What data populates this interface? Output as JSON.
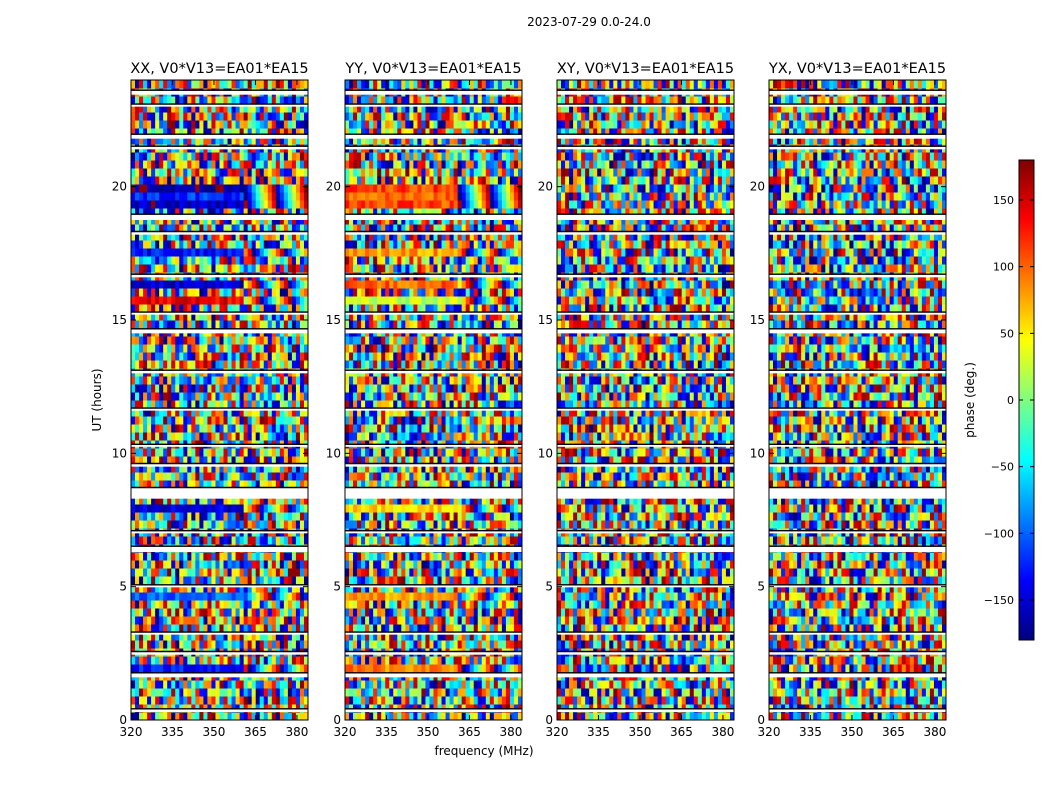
{
  "chart_data": {
    "type": "heatmap",
    "suptitle": "2023-07-29 0.0-24.0",
    "xlabel": "frequency (MHz)",
    "ylabel": "UT (hours)",
    "xlim": [
      320,
      384
    ],
    "ylim": [
      0,
      24
    ],
    "x_ticks": [
      320,
      335,
      350,
      365,
      380
    ],
    "y_ticks": [
      0,
      5,
      10,
      15,
      20
    ],
    "panels": [
      {
        "title": "XX, V0*V13=EA01*EA15",
        "strong_bands": [
          [
            1.95,
            2.2,
            -130
          ],
          [
            4.1,
            4.3,
            -160
          ],
          [
            4.55,
            4.7,
            -100
          ],
          [
            4.95,
            5.2,
            -80
          ],
          [
            5.4,
            5.55,
            -140
          ],
          [
            7.85,
            8.05,
            -150
          ],
          [
            8.05,
            8.2,
            160
          ],
          [
            15.75,
            16.0,
            140
          ],
          [
            16.3,
            16.5,
            -150
          ],
          [
            17.5,
            17.7,
            -130
          ],
          [
            19.2,
            19.4,
            -160
          ],
          [
            19.55,
            19.75,
            -120
          ],
          [
            19.8,
            20.0,
            -170
          ]
        ]
      },
      {
        "title": "YY, V0*V13=EA01*EA15",
        "strong_bands": [
          [
            1.95,
            2.2,
            90
          ],
          [
            4.1,
            4.3,
            60
          ],
          [
            4.55,
            4.7,
            80
          ],
          [
            4.95,
            5.2,
            30
          ],
          [
            5.4,
            5.55,
            -150
          ],
          [
            7.85,
            8.05,
            55
          ],
          [
            8.05,
            8.2,
            70
          ],
          [
            15.75,
            16.0,
            20
          ],
          [
            16.3,
            16.5,
            100
          ],
          [
            17.5,
            17.7,
            80
          ],
          [
            19.2,
            19.4,
            110
          ],
          [
            19.55,
            19.75,
            100
          ],
          [
            19.8,
            20.0,
            110
          ]
        ]
      },
      {
        "title": "XY, V0*V13=EA01*EA15",
        "strong_bands": []
      },
      {
        "title": "YX, V0*V13=EA01*EA15",
        "strong_bands": []
      }
    ],
    "flagged_gaps_hours": [
      [
        0.3,
        0.4
      ],
      [
        1.6,
        1.75
      ],
      [
        2.45,
        2.55
      ],
      [
        3.2,
        3.28
      ],
      [
        5.0,
        5.05
      ],
      [
        6.3,
        6.5
      ],
      [
        7.0,
        7.08
      ],
      [
        8.3,
        8.7
      ],
      [
        9.5,
        9.6
      ],
      [
        10.25,
        10.32
      ],
      [
        11.6,
        11.68
      ],
      [
        13.0,
        13.1
      ],
      [
        14.5,
        14.65
      ],
      [
        15.2,
        15.28
      ],
      [
        16.6,
        16.7
      ],
      [
        18.2,
        18.3
      ],
      [
        18.75,
        18.95
      ],
      [
        21.4,
        21.5
      ],
      [
        21.8,
        21.95
      ],
      [
        23.0,
        23.08
      ],
      [
        23.45,
        23.6
      ]
    ],
    "colorbar": {
      "label": "phase (deg.)",
      "range": [
        -180,
        180
      ],
      "ticks": [
        150,
        100,
        50,
        0,
        -50,
        -100,
        -150
      ],
      "tick_labels": [
        "150",
        "100",
        "50",
        "0",
        "−50",
        "−100",
        "−150"
      ],
      "colormap": "jet"
    },
    "colormap_stops": [
      "#00007f",
      "#0000ff",
      "#007fff",
      "#00ffff",
      "#7fff7f",
      "#ffff00",
      "#ff7f00",
      "#ff0000",
      "#7f0000"
    ]
  }
}
